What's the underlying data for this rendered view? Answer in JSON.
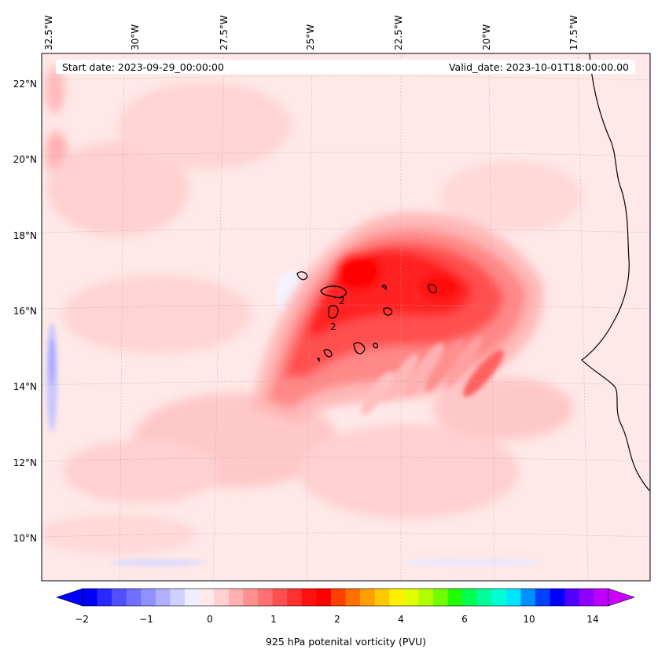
{
  "map": {
    "start_label": "Start date: 2023-09-29_00:00:00",
    "valid_label": "Valid_date: 2023-10-01T18:00:00.00",
    "colorbar_label": "925 hPa potenital vorticity (PVU)",
    "lon_labels": [
      "32.5°W",
      "30°W",
      "27.5°W",
      "25°W",
      "22.5°W",
      "20°W",
      "17.5°W"
    ],
    "lat_labels": [
      "22°N",
      "20°N",
      "18°N",
      "16°N",
      "14°N",
      "12°N",
      "10°N"
    ],
    "colorbar_ticks": [
      "−2",
      "−1",
      "0",
      "1",
      "2",
      "4",
      "6",
      "10",
      "14"
    ],
    "contour_labels": [
      "2",
      "2"
    ],
    "colors": {
      "background_field": "#ffe8e8",
      "coastline": "#000000",
      "core": "#ff2020"
    },
    "colorbar_colors": [
      "#0000ff",
      "#2828ff",
      "#5050ff",
      "#7070ff",
      "#9090ff",
      "#b0b0ff",
      "#d0d0ff",
      "#eeeeff",
      "#ffe8e8",
      "#ffd0d0",
      "#ffb0b0",
      "#ff9090",
      "#ff7070",
      "#ff5050",
      "#ff3030",
      "#ff1010",
      "#ff0000",
      "#ff4000",
      "#ff7000",
      "#ff9f00",
      "#ffc800",
      "#fff000",
      "#e0ff00",
      "#b0ff00",
      "#70ff00",
      "#20ff00",
      "#00ff50",
      "#00ff9a",
      "#00ffd5",
      "#00e5ff",
      "#0090ff",
      "#0040ff",
      "#0000ff",
      "#5000ff",
      "#9000ff",
      "#c000ff"
    ]
  }
}
